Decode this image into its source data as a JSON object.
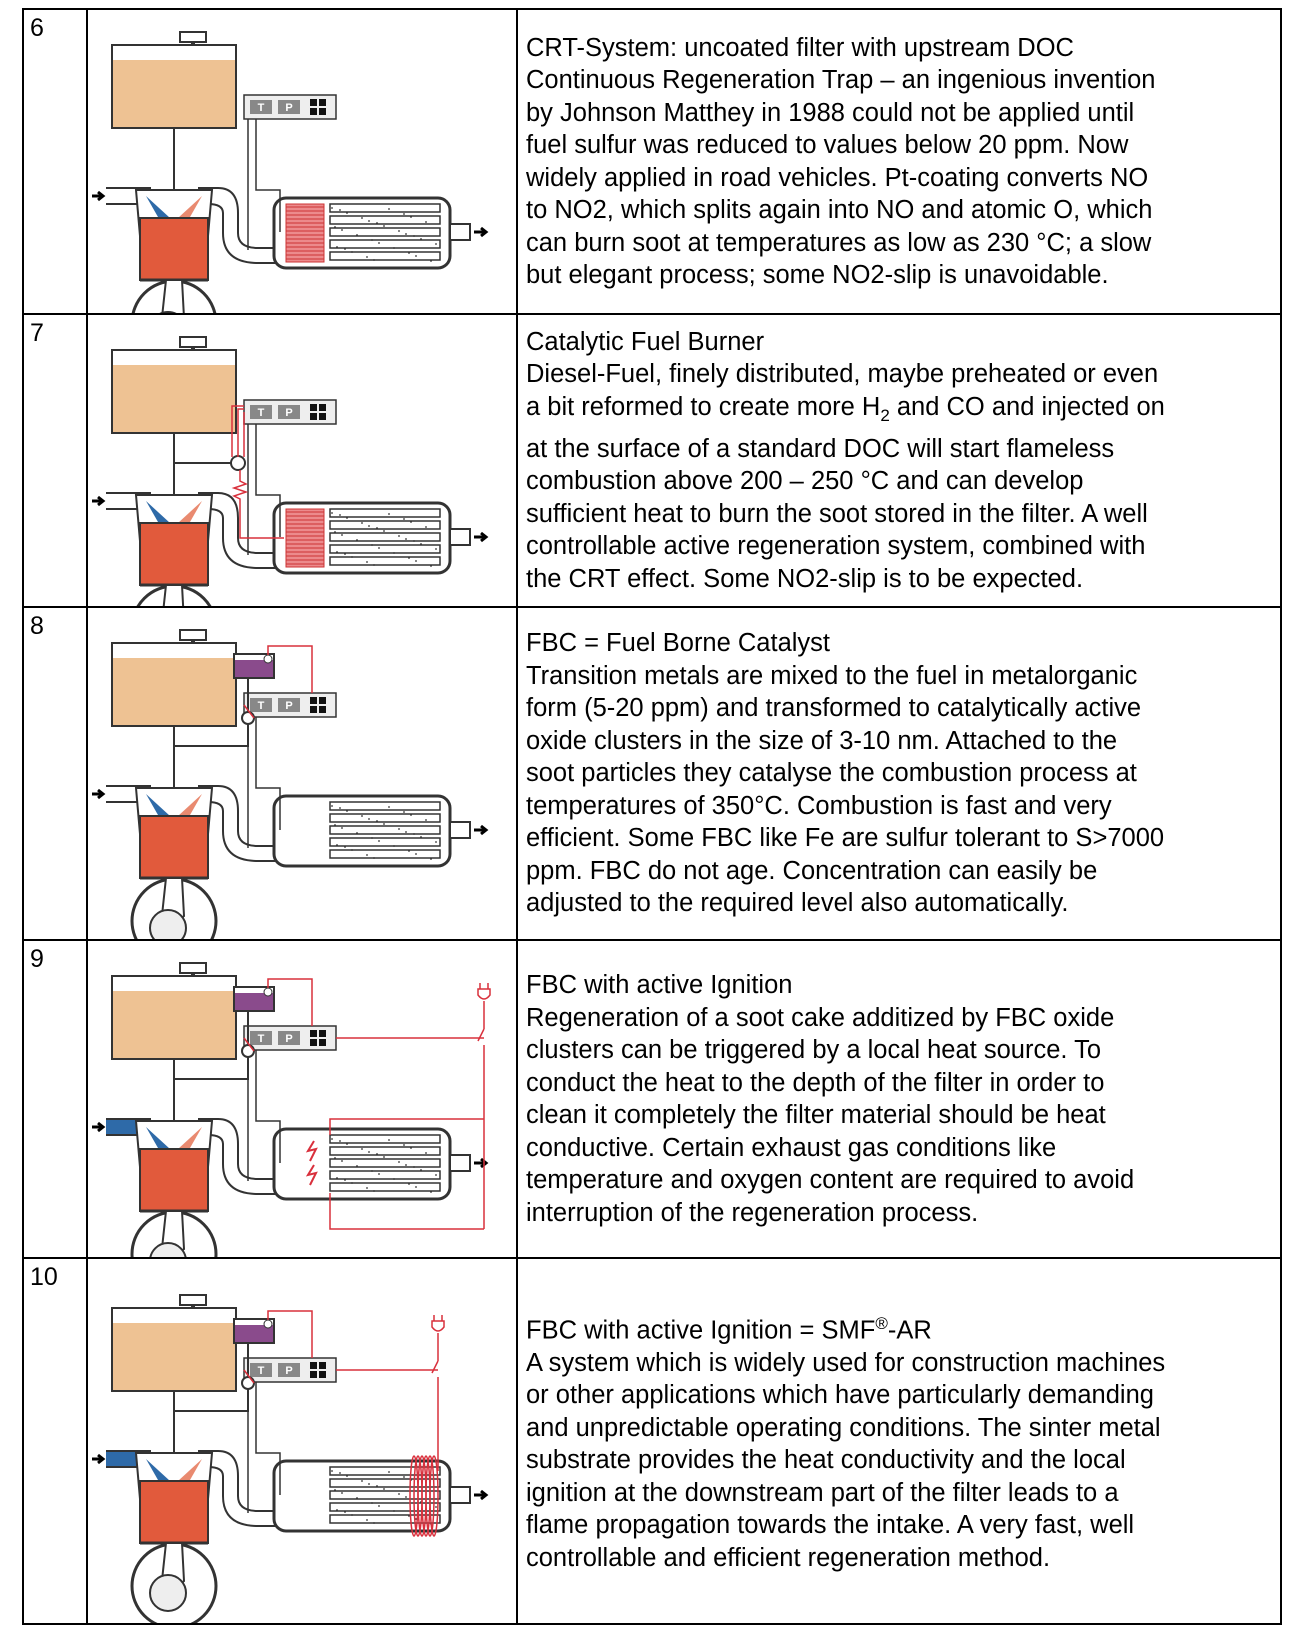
{
  "rows": [
    {
      "number": "6",
      "lines": [
        "CRT-System: uncoated filter with upstream DOC",
        "Continuous Regeneration Trap – an ingenious invention",
        "by Johnson Matthey in 1988 could not be applied until",
        "fuel sulfur was reduced to values below 20 ppm. Now",
        "widely applied in road vehicles. Pt-coating converts NO",
        "to NO2, which splits again into NO and atomic O, which",
        "can burn soot at temperatures as low as 230 °C; a slow",
        "but elegant process; some NO2-slip is unavoidable."
      ]
    },
    {
      "number": "7",
      "lines": [
        "Catalytic Fuel Burner",
        "Diesel-Fuel, finely distributed, maybe preheated or even",
        [
          {
            "text": "a bit reformed to create more H"
          },
          {
            "sub": "2"
          },
          {
            "text": " and CO and injected on"
          }
        ],
        "at the surface of a standard DOC will start flameless",
        "combustion above 200 – 250 °C and can develop",
        "sufficient heat to burn the soot stored in the filter. A well",
        "controllable active regeneration system, combined with",
        "the CRT effect. Some NO2-slip is to be expected."
      ]
    },
    {
      "number": "8",
      "lines": [
        "FBC = Fuel Borne Catalyst",
        "Transition metals are mixed to the fuel in metalorganic",
        "form (5-20 ppm) and transformed to catalytically active",
        "oxide clusters in the size of 3-10 nm. Attached to the",
        "soot particles they catalyse the combustion process at",
        "temperatures of 350°C. Combustion is fast and very",
        "efficient. Some FBC like Fe are sulfur tolerant to S>7000",
        "ppm. FBC do not age. Concentration can easily be",
        "adjusted to the required level also automatically."
      ]
    },
    {
      "number": "9",
      "lines": [
        "FBC with active Ignition",
        "Regeneration of a soot cake additized by FBC oxide",
        "clusters can be triggered by a local heat source. To",
        "conduct the heat to the depth of the filter in order to",
        "clean it completely the filter material should be heat",
        "conductive. Certain exhaust gas conditions like",
        "temperature and oxygen content are required to avoid",
        "interruption of the regeneration process."
      ]
    },
    {
      "number": "10",
      "lines": [
        [
          {
            "text": "FBC with active Ignition = SMF"
          },
          {
            "sup": "®"
          },
          {
            "text": "-AR"
          }
        ],
        "A system which is widely used for construction machines",
        "or other applications which have particularly demanding",
        "and unpredictable operating conditions. The sinter metal",
        "substrate provides the heat conductivity and the local",
        "ignition at the downstream part of the filter leads to a",
        "flame propagation towards the intake. A very fast, well",
        "controllable and efficient regeneration method."
      ]
    }
  ],
  "controller_labels": {
    "t": "T",
    "p": "P"
  }
}
